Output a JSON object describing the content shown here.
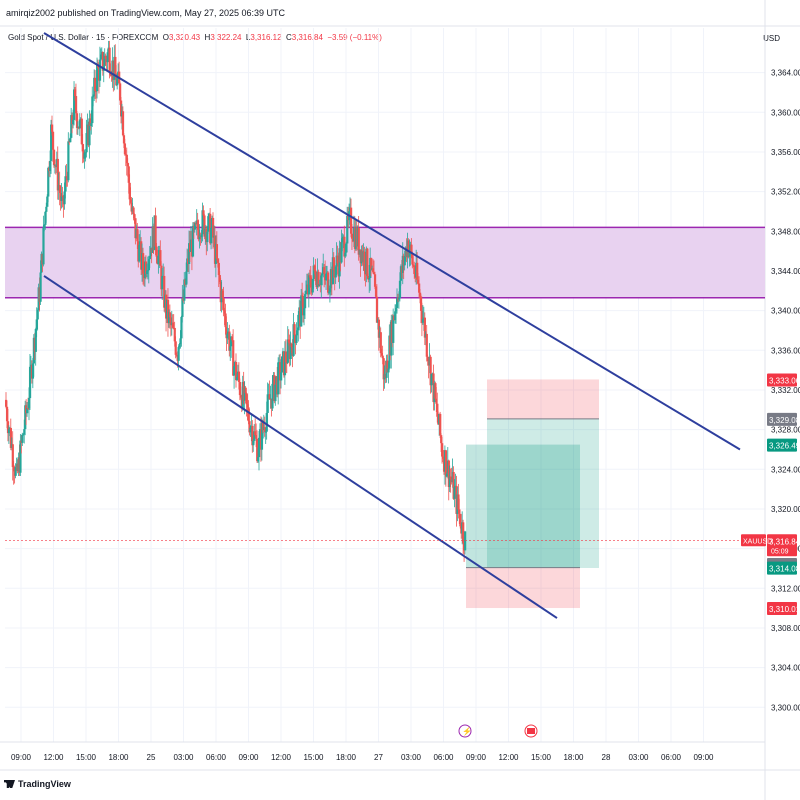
{
  "header": {
    "published": "amirqiz2002 published on TradingView.com, May 27, 2025 06:39 UTC"
  },
  "legend": {
    "symbol": "Gold Spot / U.S. Dollar · 15 · FOREXCOM",
    "o_label": "O",
    "o": "3,320.43",
    "h_label": "H",
    "h": "3,322.24",
    "l_label": "L",
    "l": "3,316.12",
    "c_label": "C",
    "c": "3,316.84",
    "change": "−3.59 (−0.11%)"
  },
  "currency": "USD",
  "brand": "TradingView",
  "chart_data": {
    "type": "candlestick",
    "title": "Gold Spot / U.S. Dollar · 15 · FOREXCOM",
    "ylabel": "USD",
    "ylim": [
      3296.5,
      3368.5
    ],
    "y_ticks": [
      3300,
      3304,
      3308,
      3312,
      3316,
      3320,
      3324,
      3328,
      3332,
      3336,
      3340,
      3344,
      3348,
      3352,
      3356,
      3360,
      3364
    ],
    "x_ticks": [
      "09:00",
      "12:00",
      "15:00",
      "18:00",
      "25",
      "03:00",
      "06:00",
      "09:00",
      "12:00",
      "15:00",
      "18:00",
      "27",
      "03:00",
      "06:00",
      "09:00",
      "12:00",
      "15:00",
      "18:00",
      "28",
      "03:00",
      "06:00",
      "09:00"
    ],
    "grid": true,
    "colors": {
      "up": "#26a69a",
      "down": "#ef5350",
      "channel": "#2e3f9e",
      "zone": "#9c27b0",
      "zone_fill": "#e8d2f0"
    },
    "price_path": [
      [
        0,
        3331
      ],
      [
        1,
        3323
      ],
      [
        2,
        3331
      ],
      [
        3,
        3342
      ],
      [
        4,
        3358
      ],
      [
        5,
        3350
      ],
      [
        6,
        3361
      ],
      [
        7,
        3356
      ],
      [
        8,
        3364
      ],
      [
        9,
        3366
      ],
      [
        10,
        3362
      ],
      [
        11,
        3350
      ],
      [
        12,
        3344
      ],
      [
        13,
        3348
      ],
      [
        14,
        3340
      ],
      [
        15,
        3336
      ],
      [
        16,
        3346
      ],
      [
        17,
        3349
      ],
      [
        18,
        3348
      ],
      [
        19,
        3340
      ],
      [
        20,
        3334
      ],
      [
        21,
        3330
      ],
      [
        22,
        3326
      ],
      [
        23,
        3331
      ],
      [
        24,
        3334
      ],
      [
        25,
        3337
      ],
      [
        26,
        3341
      ],
      [
        27,
        3344
      ],
      [
        28,
        3343
      ],
      [
        29,
        3345
      ],
      [
        30,
        3349
      ],
      [
        31,
        3346
      ],
      [
        32,
        3343
      ],
      [
        33,
        3333
      ],
      [
        34,
        3341
      ],
      [
        35,
        3347
      ],
      [
        36,
        3342
      ],
      [
        37,
        3334
      ],
      [
        38,
        3326
      ],
      [
        39,
        3322
      ],
      [
        40,
        3316.84
      ]
    ],
    "zone": {
      "top": 3348.4,
      "bottom": 3341.3
    },
    "channel_lines": [
      {
        "from": [
          4,
          3368
        ],
        "to": [
          79,
          3326
        ]
      },
      {
        "from": [
          0,
          3343.5
        ],
        "to": [
          60,
          3309
        ]
      }
    ],
    "positions": [
      {
        "entry": 3314.45,
        "target": 3329.08,
        "stop": 3333.06
      },
      {
        "entry": 3314.08,
        "target": 3326.49,
        "stop": 3310.01
      }
    ],
    "price_labels": [
      {
        "text": "3,333.06",
        "value": 3333.06,
        "color": "#f23645"
      },
      {
        "text": "3,329.08",
        "value": 3329.08,
        "color": "#787b86"
      },
      {
        "text": "3,326.49",
        "value": 3326.49,
        "color": "#089981"
      },
      {
        "text": "3,316.84",
        "value": 3316.84,
        "color": "#f23645",
        "sub": "05:09"
      },
      {
        "text": "3,314.45",
        "value": 3314.45,
        "color": "#787b86"
      },
      {
        "text": "3,314.08",
        "value": 3314.08,
        "color": "#089981"
      },
      {
        "text": "3,310.01",
        "value": 3310.01,
        "color": "#f23645"
      }
    ],
    "symbol_tag": "XAUUSD",
    "last_price": 3316.84
  }
}
